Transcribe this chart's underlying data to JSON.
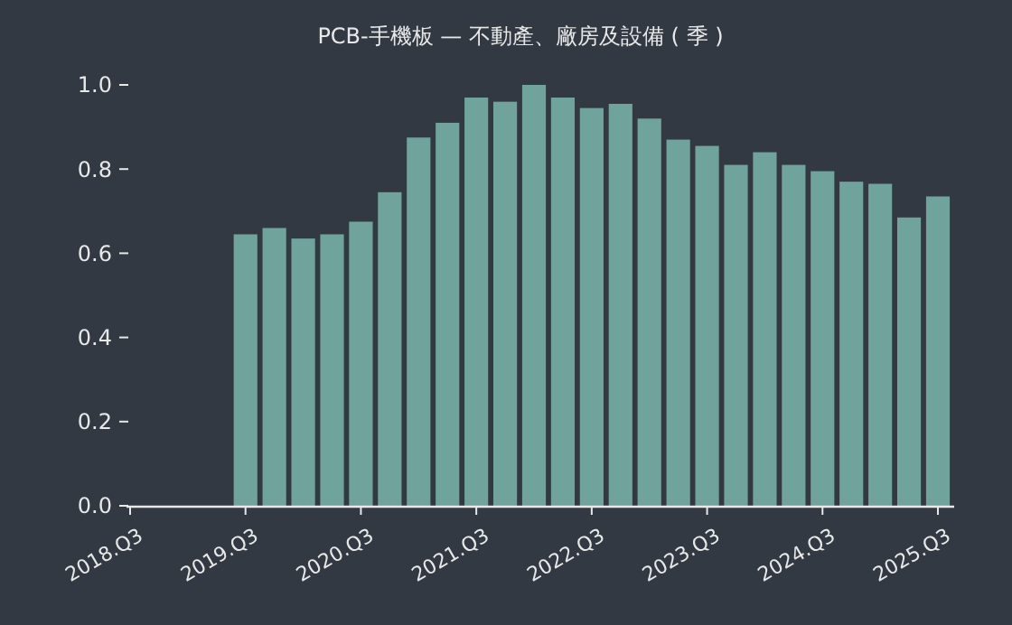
{
  "chart_data": {
    "type": "bar",
    "title": "PCB-手機板 — 不動產、廠房及設備 ( 季 )",
    "categories": [
      "2018.Q3",
      null,
      null,
      null,
      "2019.Q3",
      null,
      null,
      null,
      "2020.Q3",
      null,
      null,
      null,
      "2021.Q3",
      null,
      null,
      null,
      "2022.Q3",
      null,
      null,
      null,
      "2023.Q3",
      null,
      null,
      null,
      "2024.Q3",
      null,
      null,
      null,
      "2025.Q3"
    ],
    "values": [
      null,
      null,
      null,
      null,
      0.645,
      0.66,
      0.635,
      0.645,
      0.675,
      0.745,
      0.875,
      0.91,
      0.97,
      0.96,
      1.0,
      0.97,
      0.945,
      0.955,
      0.92,
      0.87,
      0.855,
      0.81,
      0.84,
      0.81,
      0.795,
      0.77,
      0.765,
      0.685,
      0.735
    ],
    "color": "#6fa39c",
    "ylim": [
      0,
      1
    ],
    "yticks": [
      {
        "value": 0,
        "label": "0.0"
      },
      0.2,
      0.4,
      0.6,
      0.8,
      {
        "value": 1,
        "label": "1.0"
      }
    ],
    "grid": false
  }
}
